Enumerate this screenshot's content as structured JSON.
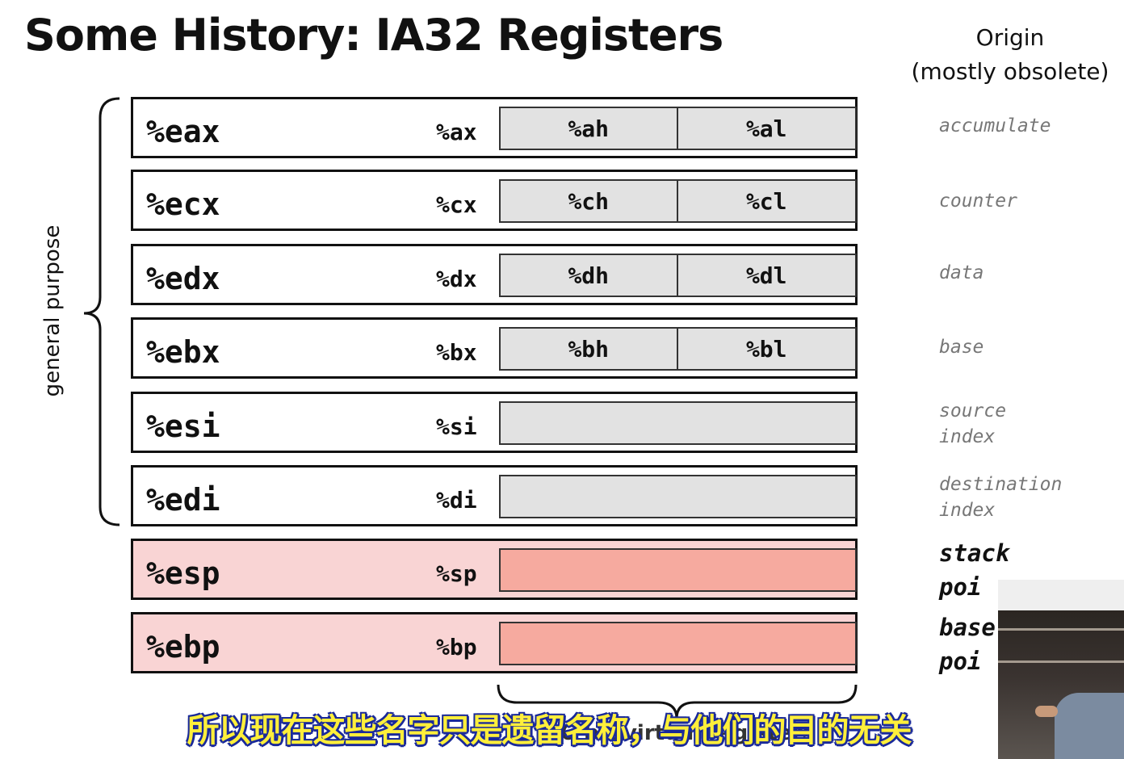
{
  "title": "Some History: IA32 Registers",
  "origin_header": {
    "line1": "Origin",
    "line2": "(mostly obsolete)"
  },
  "group_label": "general purpose",
  "registers": [
    {
      "name": "%eax",
      "sub": "%ax",
      "high": "%ah",
      "low": "%al",
      "origin": [
        "accumulate"
      ],
      "kind": "general"
    },
    {
      "name": "%ecx",
      "sub": "%cx",
      "high": "%ch",
      "low": "%cl",
      "origin": [
        "counter"
      ],
      "kind": "general"
    },
    {
      "name": "%edx",
      "sub": "%dx",
      "high": "%dh",
      "low": "%dl",
      "origin": [
        "data"
      ],
      "kind": "general"
    },
    {
      "name": "%ebx",
      "sub": "%bx",
      "high": "%bh",
      "low": "%bl",
      "origin": [
        "base"
      ],
      "kind": "general"
    },
    {
      "name": "%esi",
      "sub": "%si",
      "high": "",
      "low": "",
      "origin": [
        "source",
        "index"
      ],
      "kind": "general"
    },
    {
      "name": "%edi",
      "sub": "%di",
      "high": "",
      "low": "",
      "origin": [
        "destination",
        "index"
      ],
      "kind": "general"
    },
    {
      "name": "%esp",
      "sub": "%sp",
      "high": "",
      "low": "",
      "origin": [
        "stack",
        "poi"
      ],
      "kind": "stack"
    },
    {
      "name": "%ebp",
      "sub": "%bp",
      "high": "",
      "low": "",
      "origin": [
        "base",
        "poi"
      ],
      "kind": "stack"
    }
  ],
  "bottom_label": "16-bit virtual registers",
  "subtitle": "所以现在这些名字只是遗留名称，与他们的目的无关",
  "colors": {
    "general_low": "#e2e2e2",
    "stack_fill": "#f9d4d4",
    "stack_low": "#f6aa9f",
    "subtitle_fill": "#ffef3a",
    "subtitle_outline": "#1a2a9a"
  }
}
